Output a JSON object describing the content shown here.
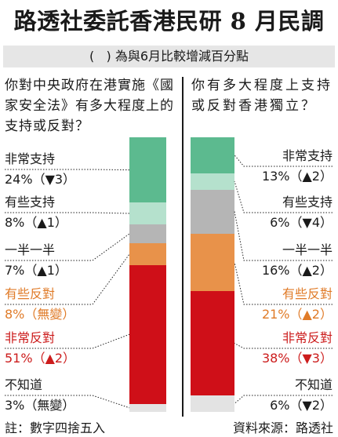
{
  "title": "路透社委託香港民研 8 月民調",
  "subtitle": "(   ) 為與6月比較增減百分點",
  "footer": {
    "note": "註：數字四捨五入",
    "source": "資料來源：路透社"
  },
  "colors": {
    "strong_support": "#5cba8f",
    "some_support": "#b5e1cd",
    "half": "#b5b5b5",
    "some_oppose": "#e8924a",
    "strong_oppose": "#cf0f18",
    "dont_know": "#e3e3e3",
    "oppose_text": "#e07b28",
    "strong_text": "#cc1c1c"
  },
  "chart_data": [
    {
      "type": "bar",
      "title": "你對中央政府在港實施《國家安全法》有多大程度上的支持或反對？",
      "categories": [
        "非常支持",
        "有些支持",
        "一半一半",
        "有些反對",
        "非常反對",
        "不知道"
      ],
      "values": [
        24,
        8,
        7,
        8,
        51,
        3
      ],
      "changes": [
        "▼3",
        "▲1",
        "▲1",
        "無變",
        "▲2",
        "無變"
      ],
      "labels": [
        "24%（▼3）",
        "8%（▲1）",
        "7%（▲1）",
        "8%（無變）",
        "51%（▲2）",
        "3%（無變）"
      ],
      "unit": "%"
    },
    {
      "type": "bar",
      "title": "你有多大程度上支持或反對香港獨立？",
      "categories": [
        "非常支持",
        "有些支持",
        "一半一半",
        "有些反對",
        "非常反對",
        "不知道"
      ],
      "values": [
        13,
        6,
        16,
        21,
        38,
        6
      ],
      "changes": [
        "▲2",
        "▼4",
        "▲2",
        "▲2",
        "▼3",
        "▼2"
      ],
      "labels": [
        "13%（▲2）",
        "6%（▼4）",
        "16%（▲2）",
        "21%（▲2）",
        "38%（▼3）",
        "6%（▼2）"
      ],
      "unit": "%"
    }
  ]
}
